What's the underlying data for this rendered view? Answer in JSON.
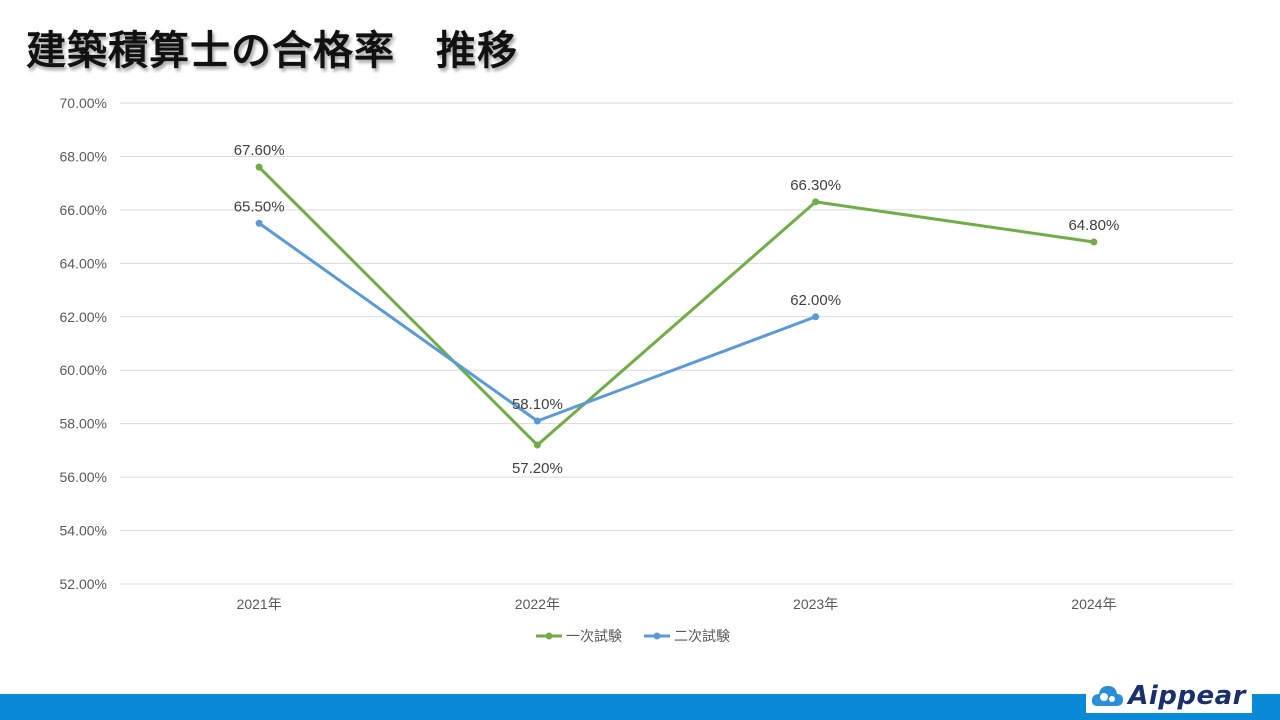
{
  "slide": {
    "title": "建築積算士の合格率　推移",
    "brand": "Aippear",
    "brand_icon": "cloud-logo-icon",
    "colors": {
      "footer": "#0a8ad6",
      "brand_text": "#1a2f6b"
    }
  },
  "chart_data": {
    "type": "line",
    "categories": [
      "2021年",
      "2022年",
      "2023年",
      "2024年"
    ],
    "series": [
      {
        "name": "一次試験",
        "color": "#70ad47",
        "values": [
          67.6,
          57.2,
          66.3,
          64.8
        ],
        "labels": [
          "67.60%",
          "57.20%",
          "66.30%",
          "64.80%"
        ]
      },
      {
        "name": "二次試験",
        "color": "#5b9bd5",
        "values": [
          65.5,
          58.1,
          62.0,
          null
        ],
        "labels": [
          "65.50%",
          "58.10%",
          "62.00%",
          ""
        ]
      }
    ],
    "ylim": [
      52,
      70
    ],
    "yticks": [
      "52.00%",
      "54.00%",
      "56.00%",
      "58.00%",
      "60.00%",
      "62.00%",
      "64.00%",
      "66.00%",
      "68.00%",
      "70.00%"
    ],
    "grid": true,
    "legend": "bottom"
  }
}
